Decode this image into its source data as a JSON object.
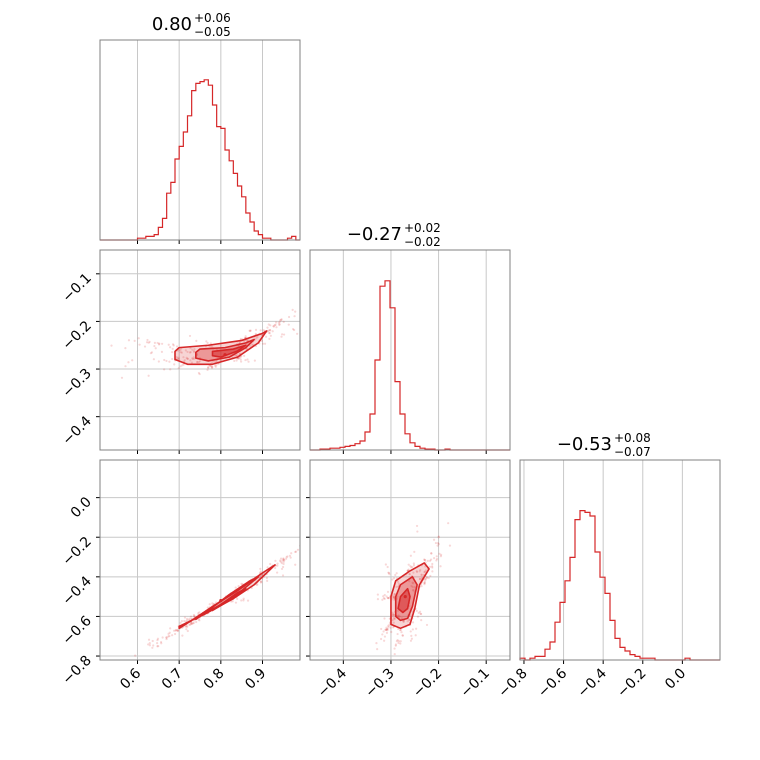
{
  "chart_data": {
    "type": "corner",
    "color": "#d62728",
    "grid": true,
    "parameters": [
      {
        "title": {
          "median": "0.80",
          "plus": "+0.06",
          "minus": "−0.05"
        },
        "range": [
          0.51,
          0.99
        ],
        "ticks": [
          0.6,
          0.7,
          0.8,
          0.9
        ],
        "tick_labels": [
          "0.6",
          "0.7",
          "0.8",
          "0.9"
        ],
        "histogram": [
          0,
          0,
          0,
          0,
          0,
          0,
          0,
          0,
          0,
          0.01,
          0.01,
          0.02,
          0.02,
          0.03,
          0.07,
          0.12,
          0.26,
          0.32,
          0.45,
          0.52,
          0.6,
          0.69,
          0.83,
          0.87,
          0.88,
          0.89,
          0.86,
          0.75,
          0.63,
          0.62,
          0.5,
          0.44,
          0.37,
          0.3,
          0.24,
          0.15,
          0.1,
          0.05,
          0.03,
          0.01,
          0.01,
          0.0,
          0.0,
          0.0,
          0.0,
          0.01,
          0.02,
          0.0
        ]
      },
      {
        "title": {
          "median": "−0.27",
          "plus": "+0.02",
          "minus": "−0.02"
        },
        "range": [
          -0.47,
          -0.05
        ],
        "ticks": [
          -0.4,
          -0.3,
          -0.2,
          -0.1
        ],
        "tick_labels": [
          "−0.4",
          "−0.3",
          "−0.2",
          "−0.1"
        ],
        "histogram": [
          0,
          0,
          0.005,
          0.005,
          0.01,
          0.01,
          0.015,
          0.02,
          0.025,
          0.035,
          0.05,
          0.1,
          0.2,
          0.5,
          0.91,
          0.94,
          0.79,
          0.38,
          0.2,
          0.09,
          0.04,
          0.02,
          0.01,
          0.005,
          0.005,
          0,
          0,
          0.005,
          0,
          0,
          0,
          0,
          0,
          0,
          0,
          0,
          0,
          0,
          0,
          0
        ]
      },
      {
        "title": {
          "median": "−0.53",
          "plus": "+0.08",
          "minus": "−0.07"
        },
        "range": [
          -0.82,
          0.19
        ],
        "ticks": [
          -0.8,
          -0.6,
          -0.4,
          -0.2,
          0.0
        ],
        "tick_labels": [
          "−0.8",
          "−0.6",
          "−0.4",
          "−0.2",
          "0.0"
        ],
        "histogram": [
          0.01,
          0.0,
          0.01,
          0.02,
          0.02,
          0.06,
          0.1,
          0.21,
          0.32,
          0.44,
          0.57,
          0.78,
          0.83,
          0.82,
          0.8,
          0.6,
          0.46,
          0.37,
          0.22,
          0.12,
          0.07,
          0.05,
          0.03,
          0.02,
          0.01,
          0.01,
          0.01,
          0.0,
          0.0,
          0.0,
          0.0,
          0.0,
          0.0,
          0.01,
          0.0,
          0.0,
          0.0,
          0.0,
          0.0,
          0.0
        ]
      }
    ],
    "pairs": [
      {
        "x_param": 0,
        "y_param": 1,
        "centre": [
          0.81,
          -0.27
        ],
        "contours": [
          {
            "level": "0.5",
            "points": [
              [
                0.7,
                -0.255
              ],
              [
                0.77,
                -0.25
              ],
              [
                0.85,
                -0.24
              ],
              [
                0.9,
                -0.225
              ],
              [
                0.91,
                -0.22
              ],
              [
                0.89,
                -0.245
              ],
              [
                0.84,
                -0.275
              ],
              [
                0.78,
                -0.29
              ],
              [
                0.72,
                -0.29
              ],
              [
                0.69,
                -0.28
              ],
              [
                0.69,
                -0.263
              ]
            ]
          },
          {
            "level": "0.75",
            "points": [
              [
                0.75,
                -0.258
              ],
              [
                0.81,
                -0.255
              ],
              [
                0.86,
                -0.245
              ],
              [
                0.88,
                -0.238
              ],
              [
                0.86,
                -0.255
              ],
              [
                0.82,
                -0.275
              ],
              [
                0.77,
                -0.283
              ],
              [
                0.74,
                -0.277
              ],
              [
                0.74,
                -0.265
              ]
            ]
          },
          {
            "level": "0.95",
            "points": [
              [
                0.78,
                -0.263
              ],
              [
                0.83,
                -0.258
              ],
              [
                0.86,
                -0.25
              ],
              [
                0.84,
                -0.262
              ],
              [
                0.8,
                -0.275
              ],
              [
                0.78,
                -0.272
              ]
            ]
          }
        ]
      },
      {
        "x_param": 0,
        "y_param": 2,
        "centre": [
          0.8,
          -0.52
        ],
        "contours": [
          {
            "level": "0.5",
            "points": [
              [
                0.7,
                -0.65
              ],
              [
                0.76,
                -0.59
              ],
              [
                0.83,
                -0.51
              ],
              [
                0.88,
                -0.44
              ],
              [
                0.92,
                -0.36
              ],
              [
                0.93,
                -0.34
              ],
              [
                0.9,
                -0.38
              ],
              [
                0.84,
                -0.47
              ],
              [
                0.78,
                -0.55
              ],
              [
                0.73,
                -0.62
              ],
              [
                0.7,
                -0.66
              ]
            ]
          },
          {
            "level": "0.75",
            "points": [
              [
                0.74,
                -0.61
              ],
              [
                0.8,
                -0.54
              ],
              [
                0.85,
                -0.47
              ],
              [
                0.89,
                -0.4
              ],
              [
                0.87,
                -0.42
              ],
              [
                0.82,
                -0.49
              ],
              [
                0.77,
                -0.57
              ],
              [
                0.74,
                -0.615
              ]
            ]
          },
          {
            "level": "0.95",
            "points": [
              [
                0.78,
                -0.57
              ],
              [
                0.82,
                -0.52
              ],
              [
                0.86,
                -0.46
              ],
              [
                0.84,
                -0.48
              ],
              [
                0.8,
                -0.54
              ],
              [
                0.78,
                -0.57
              ]
            ]
          }
        ]
      },
      {
        "x_param": 1,
        "y_param": 2,
        "centre": [
          -0.27,
          -0.5
        ],
        "contours": [
          {
            "level": "0.5",
            "points": [
              [
                -0.3,
                -0.62
              ],
              [
                -0.3,
                -0.5
              ],
              [
                -0.29,
                -0.42
              ],
              [
                -0.26,
                -0.37
              ],
              [
                -0.23,
                -0.33
              ],
              [
                -0.22,
                -0.36
              ],
              [
                -0.24,
                -0.44
              ],
              [
                -0.25,
                -0.56
              ],
              [
                -0.26,
                -0.64
              ],
              [
                -0.28,
                -0.66
              ],
              [
                -0.3,
                -0.64
              ]
            ]
          },
          {
            "level": "0.75",
            "points": [
              [
                -0.29,
                -0.6
              ],
              [
                -0.29,
                -0.5
              ],
              [
                -0.28,
                -0.44
              ],
              [
                -0.255,
                -0.4
              ],
              [
                -0.245,
                -0.44
              ],
              [
                -0.255,
                -0.55
              ],
              [
                -0.265,
                -0.61
              ],
              [
                -0.28,
                -0.62
              ]
            ]
          },
          {
            "level": "0.95",
            "points": [
              [
                -0.285,
                -0.56
              ],
              [
                -0.28,
                -0.5
              ],
              [
                -0.265,
                -0.46
              ],
              [
                -0.26,
                -0.5
              ],
              [
                -0.265,
                -0.56
              ],
              [
                -0.275,
                -0.58
              ]
            ]
          }
        ]
      }
    ]
  }
}
